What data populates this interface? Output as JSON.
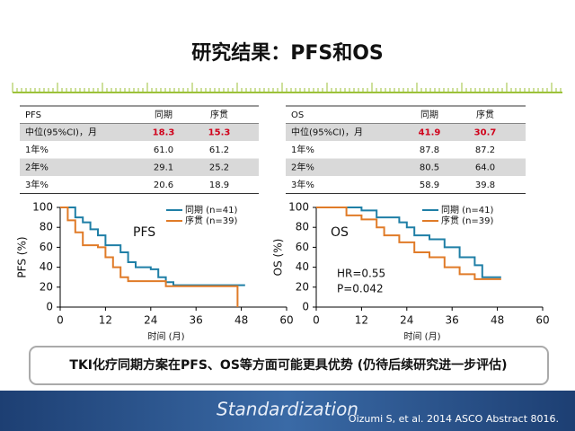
{
  "title": "研究结果：PFS和OS",
  "tables": [
    {
      "header": [
        "PFS",
        "同期",
        "序贯"
      ],
      "rows": [
        [
          "中位(95%CI)，月",
          "18.3",
          "15.3"
        ],
        [
          "1年%",
          "61.0",
          "61.2"
        ],
        [
          "2年%",
          "29.1",
          "25.2"
        ],
        [
          "3年%",
          "20.6",
          "18.9"
        ]
      ]
    },
    {
      "header": [
        "OS",
        "同期",
        "序贯"
      ],
      "rows": [
        [
          "中位(95%CI)，月",
          "41.9",
          "30.7"
        ],
        [
          "1年%",
          "87.8",
          "87.2"
        ],
        [
          "2年%",
          "80.5",
          "64.0"
        ],
        [
          "3年%",
          "58.9",
          "39.8"
        ]
      ]
    }
  ],
  "chart_data": [
    {
      "type": "step",
      "label": "PFS",
      "x_label": "时间 (月)",
      "y_label": "PFS (%)",
      "xlim": [
        0,
        60
      ],
      "xticks": [
        0,
        12,
        24,
        36,
        48,
        60
      ],
      "ylim": [
        0,
        100
      ],
      "yticks": [
        0,
        20,
        40,
        60,
        80,
        100
      ],
      "series": [
        {
          "name": "同期 (n=41)",
          "color": "#1f7fa6",
          "x": [
            0,
            4,
            6,
            8,
            10,
            12,
            16,
            18,
            20,
            24,
            26,
            28,
            30,
            49
          ],
          "values": [
            100,
            90,
            85,
            78,
            72,
            62,
            55,
            45,
            40,
            38,
            30,
            25,
            22,
            22
          ]
        },
        {
          "name": "序贯 (n=39)",
          "color": "#e07b28",
          "x": [
            0,
            2,
            4,
            6,
            10,
            12,
            14,
            16,
            18,
            20,
            28,
            30,
            47,
            47
          ],
          "values": [
            100,
            87,
            75,
            62,
            60,
            50,
            40,
            30,
            26,
            26,
            21,
            21,
            21,
            0
          ]
        }
      ]
    },
    {
      "type": "step",
      "label": "OS",
      "x_label": "时间 (月)",
      "y_label": "OS (%)",
      "xlim": [
        0,
        60
      ],
      "xticks": [
        0,
        12,
        24,
        36,
        48,
        60
      ],
      "ylim": [
        0,
        100
      ],
      "yticks": [
        0,
        20,
        40,
        60,
        80,
        100
      ],
      "annotations": [
        "HR=0.55",
        "P=0.042"
      ],
      "series": [
        {
          "name": "同期 (n=41)",
          "color": "#1f7fa6",
          "x": [
            0,
            12,
            16,
            22,
            24,
            26,
            30,
            34,
            38,
            42,
            44,
            49
          ],
          "values": [
            100,
            97,
            90,
            85,
            80,
            72,
            68,
            60,
            50,
            42,
            30,
            30
          ]
        },
        {
          "name": "序贯 (n=39)",
          "color": "#e07b28",
          "x": [
            0,
            4,
            8,
            12,
            16,
            18,
            22,
            26,
            30,
            34,
            38,
            42,
            49
          ],
          "values": [
            100,
            100,
            92,
            88,
            80,
            72,
            65,
            55,
            50,
            40,
            33,
            28,
            28
          ]
        }
      ]
    }
  ],
  "conclusion": "TKI化疗同期方案在PFS、OS等方面可能更具优势 (仍待后续研究进一步评估)",
  "footer": {
    "logo": "Standardization",
    "citation": "Oizumi S, et al. 2014 ASCO Abstract 8016."
  }
}
